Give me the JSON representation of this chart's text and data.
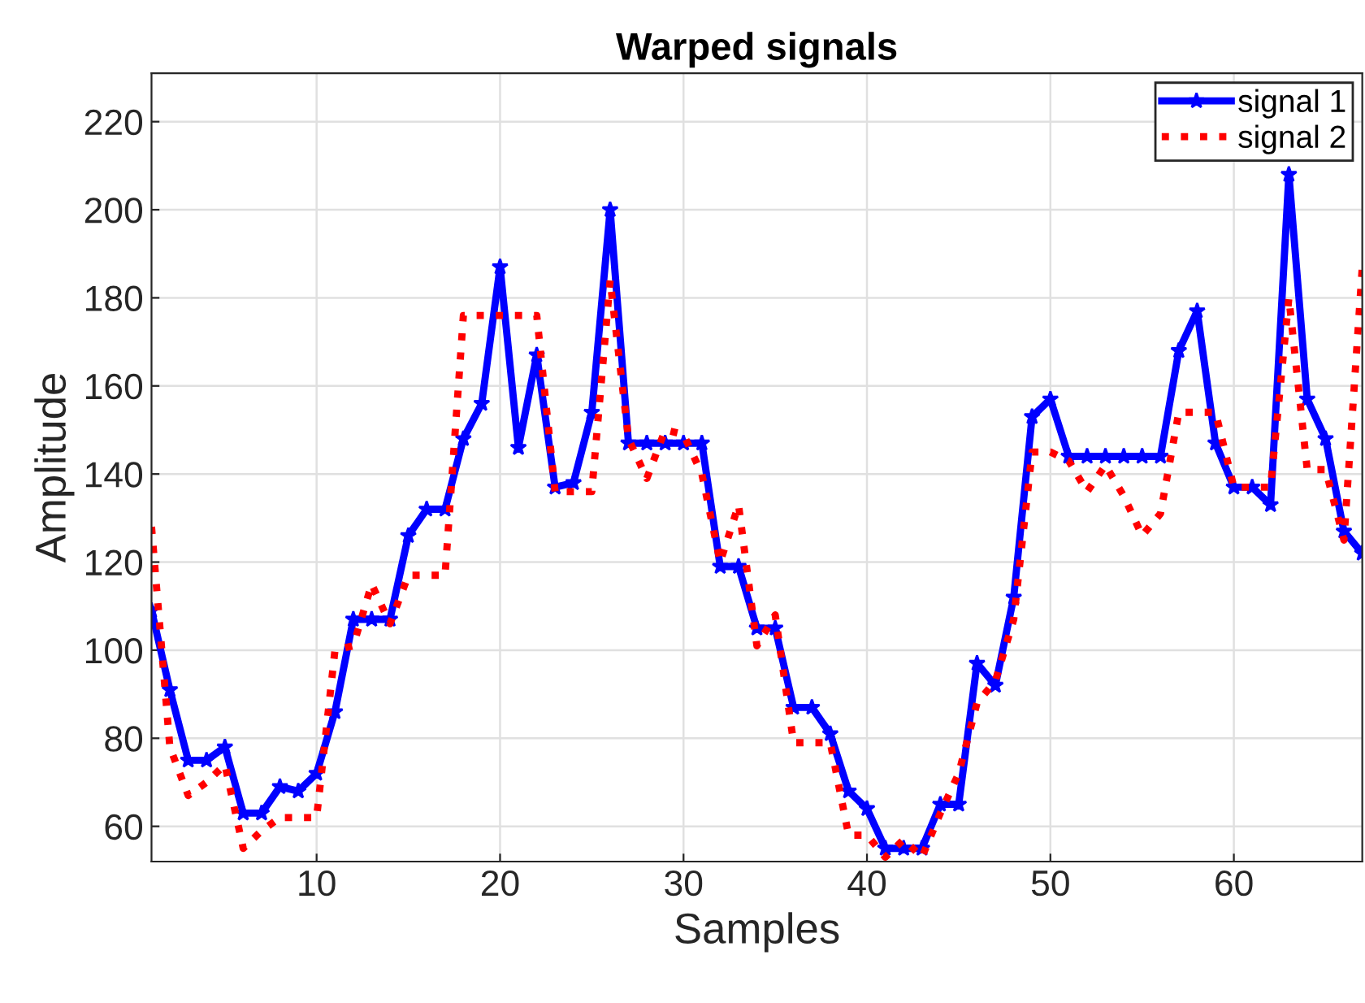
{
  "chart_data": {
    "type": "line",
    "title": "Warped signals",
    "xlabel": "Samples",
    "ylabel": "Amplitude",
    "x": [
      1,
      2,
      3,
      4,
      5,
      6,
      7,
      8,
      9,
      10,
      11,
      12,
      13,
      14,
      15,
      16,
      17,
      18,
      19,
      20,
      21,
      22,
      23,
      24,
      25,
      26,
      27,
      28,
      29,
      30,
      31,
      32,
      33,
      34,
      35,
      36,
      37,
      38,
      39,
      40,
      41,
      42,
      43,
      44,
      45,
      46,
      47,
      48,
      49,
      50,
      51,
      52,
      53,
      54,
      55,
      56,
      57,
      58,
      59,
      60,
      61,
      62,
      63,
      64,
      65,
      66,
      67
    ],
    "series": [
      {
        "name": "signal 1",
        "color": "#0000ff",
        "marker": "star",
        "line_style": "solid",
        "values": [
          109,
          91,
          75,
          75,
          78,
          63,
          63,
          69,
          68,
          72,
          86,
          107,
          107,
          107,
          126,
          132,
          132,
          148,
          156,
          187,
          146,
          167,
          137,
          138,
          154,
          200,
          147,
          147,
          147,
          147,
          147,
          119,
          119,
          105,
          105,
          87,
          87,
          81,
          68,
          64,
          55,
          55,
          55,
          65,
          65,
          97,
          92,
          112,
          153,
          157,
          144,
          144,
          144,
          144,
          144,
          144,
          168,
          177,
          147,
          137,
          137,
          133,
          208,
          157,
          148,
          127,
          122
        ]
      },
      {
        "name": "signal 2",
        "color": "#ff0000",
        "marker": "none",
        "line_style": "dotted",
        "values": [
          128,
          78,
          67,
          70,
          74,
          55,
          59,
          62,
          62,
          62,
          100,
          101,
          115,
          106,
          117,
          117,
          117,
          176,
          176,
          176,
          176,
          176,
          136,
          136,
          136,
          184,
          148,
          139,
          150,
          149,
          140,
          120,
          133,
          101,
          108,
          79,
          79,
          79,
          58,
          58,
          53,
          57,
          53,
          63,
          72,
          88,
          93,
          107,
          145,
          145,
          143,
          136,
          142,
          135,
          126,
          131,
          154,
          154,
          154,
          137,
          137,
          137,
          180,
          141,
          141,
          125,
          187
        ]
      }
    ],
    "xlim": [
      1,
      67
    ],
    "ylim": [
      52,
      231
    ],
    "xticks": [
      10,
      20,
      30,
      40,
      50,
      60
    ],
    "yticks": [
      60,
      80,
      100,
      120,
      140,
      160,
      180,
      200,
      220
    ],
    "grid": true,
    "legend": "top right"
  }
}
